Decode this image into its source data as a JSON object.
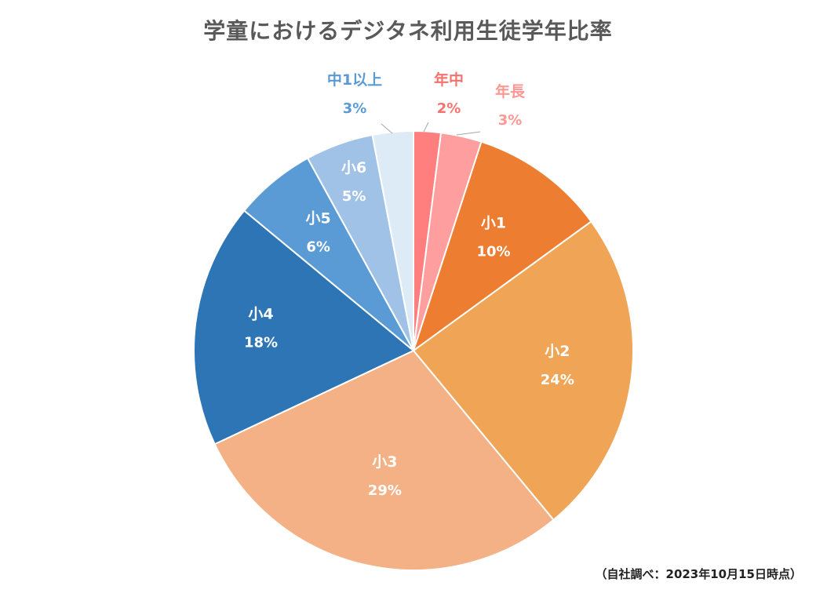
{
  "title": "学童におけるデジタネ利用生徒学年比率",
  "source_note": "（自社調べ：2023年10月15日時点）",
  "chart_data": {
    "type": "pie",
    "title": "学童におけるデジタネ利用生徒学年比率",
    "slices": [
      {
        "label": "年中",
        "pct_label": "2%",
        "value": 2,
        "color": "#FF7F7F",
        "label_color": "#F5736F"
      },
      {
        "label": "年長",
        "pct_label": "3%",
        "value": 3,
        "color": "#FF9E9E",
        "label_color": "#FF9795"
      },
      {
        "label": "小1",
        "pct_label": "10%",
        "value": 10,
        "color": "#ED7D31",
        "label_color": "#FFFFFF"
      },
      {
        "label": "小2",
        "pct_label": "24%",
        "value": 24,
        "color": "#F0A455",
        "label_color": "#FFFFFF"
      },
      {
        "label": "小3",
        "pct_label": "29%",
        "value": 29,
        "color": "#F3B185",
        "label_color": "#FFFFFF"
      },
      {
        "label": "小4",
        "pct_label": "18%",
        "value": 18,
        "color": "#2E75B6",
        "label_color": "#FFFFFF"
      },
      {
        "label": "小5",
        "pct_label": "6%",
        "value": 6,
        "color": "#5B9BD5",
        "label_color": "#FFFFFF"
      },
      {
        "label": "小6",
        "pct_label": "5%",
        "value": 5,
        "color": "#A0C2E6",
        "label_color": "#FFFFFF"
      },
      {
        "label": "中1以上",
        "pct_label": "3%",
        "value": 3,
        "color": "#DDEBF7",
        "label_color": "#5B9BD5"
      }
    ]
  }
}
